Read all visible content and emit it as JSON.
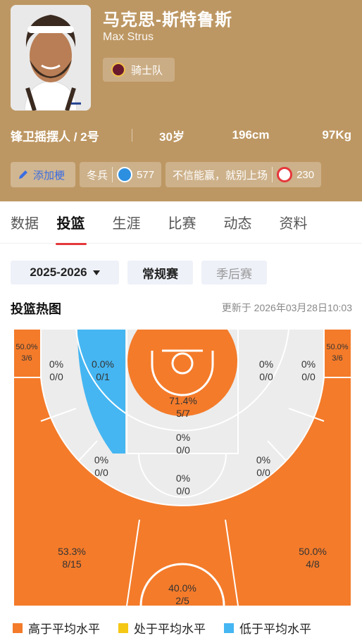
{
  "player": {
    "name_cn": "马克思-斯特鲁斯",
    "name_en": "Max Strus",
    "team": "骑士队",
    "position_number": "锋卫摇摆人 / 2号",
    "age": "30岁",
    "height": "196cm",
    "weight": "97Kg"
  },
  "tags": {
    "add_label": "添加梗",
    "tag1": {
      "label": "冬兵",
      "count": "577"
    },
    "tag2": {
      "label": "不信能赢，就别上场",
      "count": "230"
    }
  },
  "tabs": [
    "数据",
    "投篮",
    "生涯",
    "比赛",
    "动态",
    "资料"
  ],
  "active_tab": "投篮",
  "filters": {
    "season": "2025-2026",
    "regular": "常规赛",
    "playoffs": "季后赛"
  },
  "section": {
    "title": "投篮热图",
    "updated": "更新于 2026年03月28日10:03"
  },
  "zones": {
    "left_corner3": {
      "pct": "50.0%",
      "made": "3/6"
    },
    "right_corner3": {
      "pct": "50.0%",
      "made": "3/6"
    },
    "left_baseline_mid": {
      "pct": "0%",
      "made": "0/0"
    },
    "left_paint_side": {
      "pct": "0.0%",
      "made": "0/1"
    },
    "restricted": {
      "pct": "71.4%",
      "made": "5/7"
    },
    "right_paint_side": {
      "pct": "0%",
      "made": "0/0"
    },
    "right_baseline_mid": {
      "pct": "0%",
      "made": "0/0"
    },
    "paint_top": {
      "pct": "0%",
      "made": "0/0"
    },
    "left_wing_mid": {
      "pct": "0%",
      "made": "0/0"
    },
    "right_wing_mid": {
      "pct": "0%",
      "made": "0/0"
    },
    "top_key_mid": {
      "pct": "0%",
      "made": "0/0"
    },
    "left_wing3": {
      "pct": "53.3%",
      "made": "8/15"
    },
    "right_wing3": {
      "pct": "50.0%",
      "made": "4/8"
    },
    "top3": {
      "pct": "40.0%",
      "made": "2/5"
    }
  },
  "legend": {
    "above": "高于平均水平",
    "average": "处于平均水平",
    "below": "低于平均水平"
  },
  "colors": {
    "header_bg": "#bd9763",
    "above": "#f47b2a",
    "average": "#f5c815",
    "below": "#45b6f2",
    "neutral": "#ececec",
    "accent_red": "#e5383b"
  }
}
